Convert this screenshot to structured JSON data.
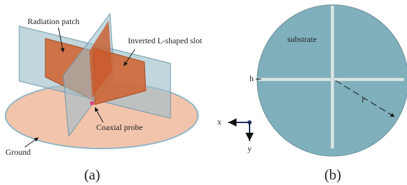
{
  "figure_a": {
    "labels": {
      "radiation_patch": "Radiation patch",
      "slot": "Inverted L-shaped slot",
      "probe": "Coaxial probe",
      "ground": "Ground"
    },
    "caption": "(a)"
  },
  "figure_b": {
    "labels": {
      "substrate": "substrate",
      "h": "h",
      "r": "r",
      "x": "x",
      "y": "y"
    },
    "caption": "(b)"
  }
}
